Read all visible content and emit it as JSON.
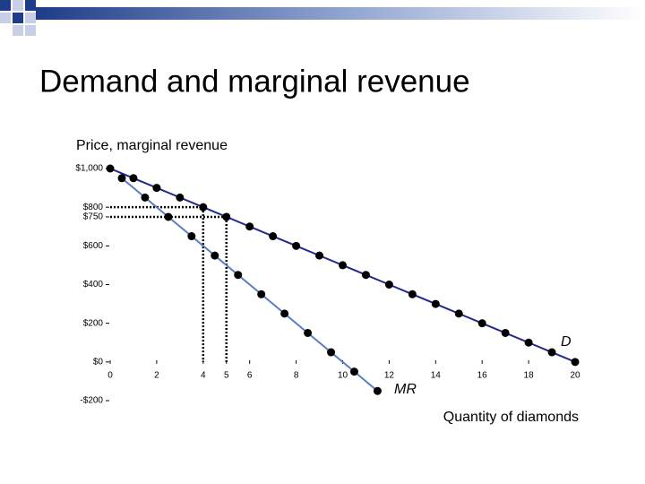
{
  "chart_data": {
    "type": "line",
    "title": "Demand and marginal revenue",
    "y_label": "Price, marginal revenue",
    "x_label": "Quantity of diamonds",
    "xlim": [
      0,
      20
    ],
    "ylim": [
      -200,
      1000
    ],
    "xticks": [
      0,
      2,
      4,
      5,
      6,
      8,
      10,
      12,
      14,
      16,
      18,
      20
    ],
    "yticks": [
      {
        "value": 1000,
        "label": "$1,000"
      },
      {
        "value": 800,
        "label": "$800"
      },
      {
        "value": 750,
        "label": "$750"
      },
      {
        "value": 600,
        "label": "$600"
      },
      {
        "value": 400,
        "label": "$400"
      },
      {
        "value": 200,
        "label": "$200"
      },
      {
        "value": 0,
        "label": "$0"
      },
      {
        "value": -200,
        "label": "-$200"
      }
    ],
    "series": [
      {
        "name": "D",
        "color": "#1f2a8c",
        "x": [
          0,
          1,
          2,
          3,
          4,
          5,
          6,
          7,
          8,
          9,
          10,
          11,
          12,
          13,
          14,
          15,
          16,
          17,
          18,
          19,
          20
        ],
        "values": [
          1000,
          950,
          900,
          850,
          800,
          750,
          700,
          650,
          600,
          550,
          500,
          450,
          400,
          350,
          300,
          250,
          200,
          150,
          100,
          50,
          0
        ]
      },
      {
        "name": "MR",
        "color": "#5a7cc6",
        "x": [
          0.5,
          1.5,
          2.5,
          3.5,
          4.5,
          5.5,
          6.5,
          7.5,
          8.5,
          9.5,
          10.5,
          11.5
        ],
        "values": [
          950,
          850,
          750,
          650,
          550,
          450,
          350,
          250,
          150,
          50,
          -50,
          -150
        ]
      }
    ],
    "guides": [
      {
        "x": 4,
        "y": 800
      },
      {
        "x": 5,
        "y": 750
      }
    ]
  }
}
